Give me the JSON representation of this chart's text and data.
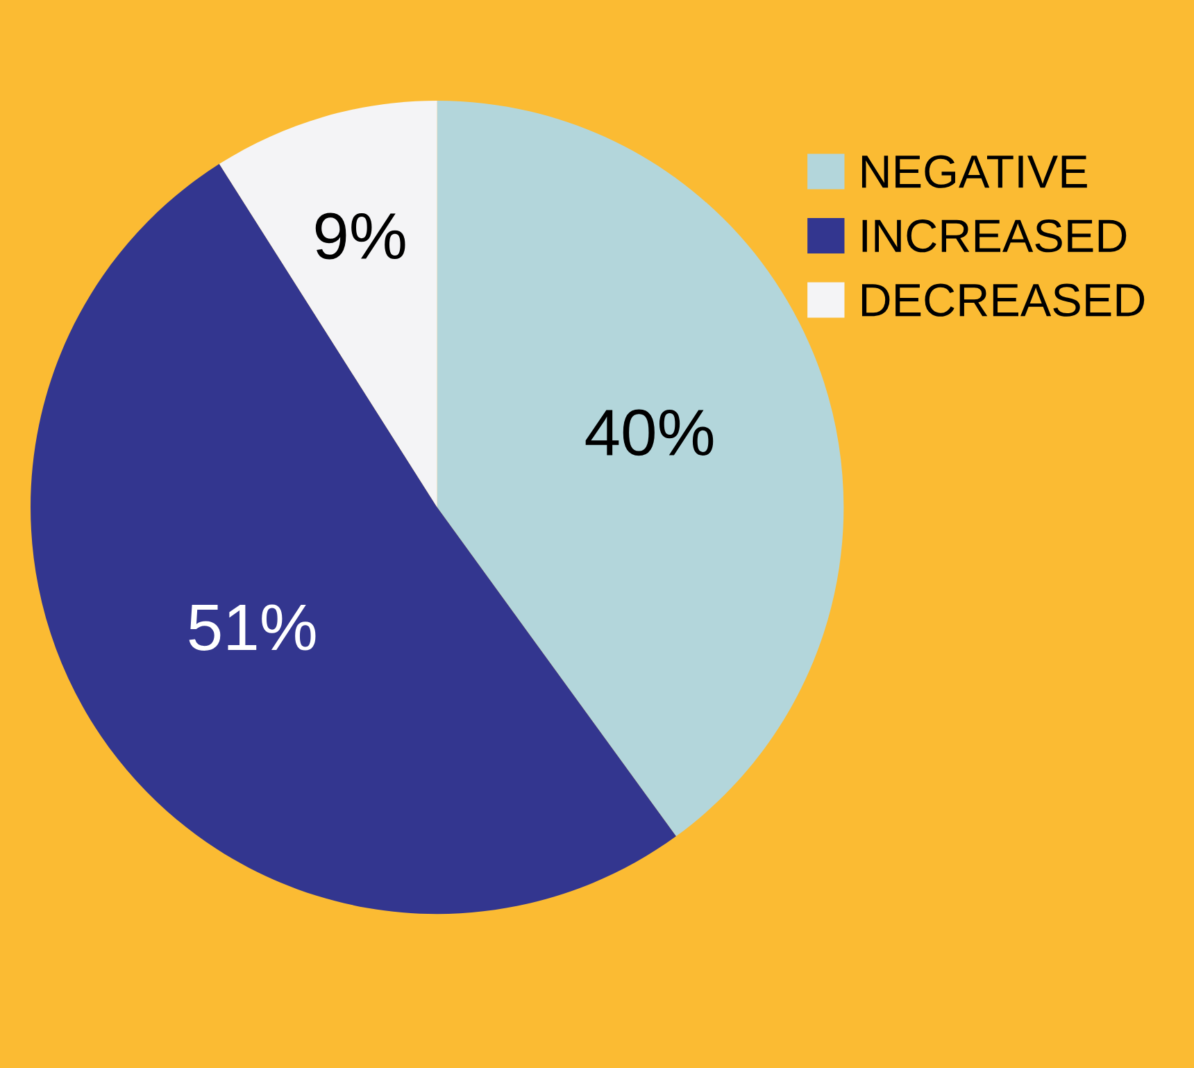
{
  "chart_data": {
    "type": "pie",
    "categories": [
      "NEGATIVE",
      "INCREASED",
      "DECREASED"
    ],
    "values": [
      40,
      51,
      9
    ],
    "colors": [
      "#b3d6db",
      "#33368f",
      "#f4f4f6"
    ],
    "value_labels": [
      "40%",
      "51%",
      "9%"
    ],
    "legend": "top right"
  }
}
